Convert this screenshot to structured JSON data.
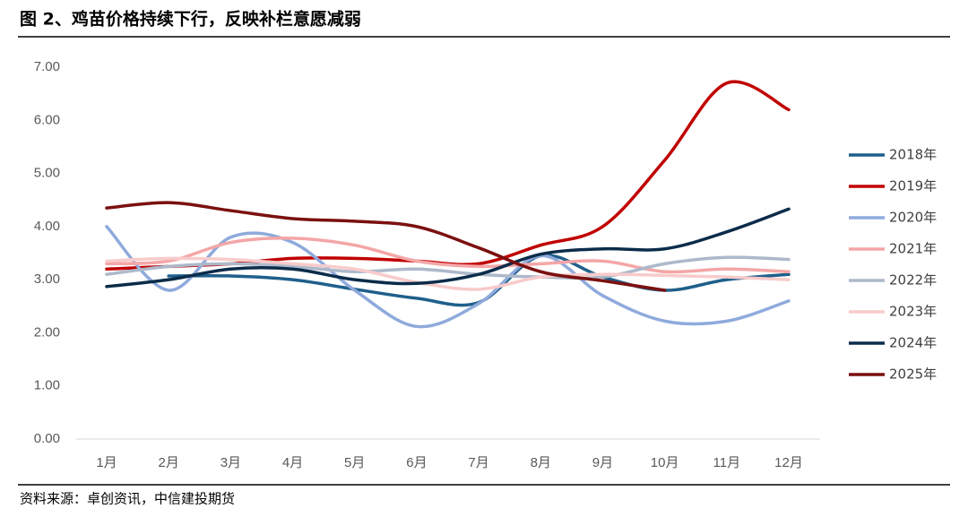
{
  "chart_data": {
    "type": "line",
    "title": "图 2、鸡苗价格持续下行，反映补栏意愿减弱",
    "source": "资料来源：卓创资讯，中信建投期货",
    "categories": [
      "1月",
      "2月",
      "3月",
      "4月",
      "5月",
      "6月",
      "7月",
      "8月",
      "9月",
      "10月",
      "11月",
      "12月"
    ],
    "ylim": [
      0,
      7
    ],
    "yticks": [
      {
        "value": 0,
        "label": "0.00"
      },
      {
        "value": 1,
        "label": "1.00"
      },
      {
        "value": 2,
        "label": "2.00"
      },
      {
        "value": 3,
        "label": "3.00"
      },
      {
        "value": 4,
        "label": "4.00"
      },
      {
        "value": 5,
        "label": "5.00"
      },
      {
        "value": 6,
        "label": "6.00"
      },
      {
        "value": 7,
        "label": "7.00"
      }
    ],
    "grid": false,
    "legend": "right",
    "series": [
      {
        "name": "2018年",
        "color": "#1f5f8b",
        "values": [
          null,
          3.07,
          3.07,
          3.0,
          2.82,
          2.65,
          2.57,
          3.45,
          3.05,
          2.8,
          3.0,
          3.1
        ]
      },
      {
        "name": "2019年",
        "color": "#c00000",
        "values": [
          3.2,
          3.25,
          3.3,
          3.4,
          3.4,
          3.35,
          3.3,
          3.65,
          4.0,
          5.25,
          6.7,
          6.2
        ]
      },
      {
        "name": "2020年",
        "color": "#8faadc",
        "values": [
          4.0,
          2.8,
          3.8,
          3.7,
          2.8,
          2.12,
          2.55,
          3.45,
          2.7,
          2.22,
          2.22,
          2.6
        ]
      },
      {
        "name": "2021年",
        "color": "#f4a6a6",
        "values": [
          3.3,
          3.35,
          3.7,
          3.78,
          3.65,
          3.35,
          3.25,
          3.3,
          3.35,
          3.15,
          3.2,
          3.15
        ]
      },
      {
        "name": "2022年",
        "color": "#adb9ca",
        "values": [
          3.1,
          3.25,
          3.3,
          3.25,
          3.15,
          3.2,
          3.1,
          3.05,
          3.05,
          3.3,
          3.42,
          3.38
        ]
      },
      {
        "name": "2023年",
        "color": "#f8cbcb",
        "values": [
          3.35,
          3.4,
          3.38,
          3.3,
          3.2,
          2.95,
          2.82,
          3.05,
          3.1,
          3.08,
          3.05,
          3.0
        ]
      },
      {
        "name": "2024年",
        "color": "#0b2c4a",
        "values": [
          2.87,
          3.0,
          3.2,
          3.2,
          3.0,
          2.93,
          3.1,
          3.48,
          3.58,
          3.58,
          3.9,
          4.33
        ]
      },
      {
        "name": "2025年",
        "color": "#7b1010",
        "values": [
          4.35,
          4.45,
          4.3,
          4.15,
          4.1,
          4.0,
          3.6,
          3.15,
          2.98,
          2.8,
          null,
          null
        ]
      }
    ]
  }
}
